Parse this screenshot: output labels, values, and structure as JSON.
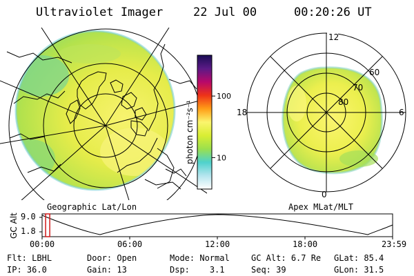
{
  "header": {
    "instrument": "Ultraviolet Imager",
    "date": "22 Jul 00",
    "time": "00:20:26 UT"
  },
  "left_panel": {
    "caption": "Geographic Lat/Lon"
  },
  "right_panel": {
    "caption": "Apex MLat/MLT",
    "mlt_labels": {
      "top": "12",
      "bottom": "0",
      "left": "18",
      "right": "6"
    },
    "lat_labels": [
      "60",
      "70",
      "80"
    ]
  },
  "colorbar": {
    "unit": "photon cm⁻²s⁻¹",
    "ticks": [
      {
        "label": "100",
        "frac": 0.695
      },
      {
        "label": "10",
        "frac": 0.235
      }
    ],
    "colors": [
      "#ffffff",
      "#b5e5ee",
      "#4ed2cc",
      "#9be04d",
      "#d9ee33",
      "#fbf56d",
      "#ff9d17",
      "#ee3318",
      "#b8086a",
      "#5b1a86",
      "#1a0d55"
    ]
  },
  "altitude_plot": {
    "ylabel": "GC Alt",
    "yticks": [
      "9.0",
      "1.8"
    ],
    "xticks": [
      "00:00",
      "06:00",
      "12:00",
      "18:00",
      "23:59"
    ],
    "current_time_frac": 0.014
  },
  "footer": {
    "row1": [
      {
        "key": "Flt:",
        "val": "LBHL"
      },
      {
        "key": "Door:",
        "val": "Open"
      },
      {
        "key": "Mode:",
        "val": "Normal"
      },
      {
        "key": "GC Alt:",
        "val": "6.7 Re"
      },
      {
        "key": "GLat:",
        "val": "85.4"
      }
    ],
    "row2": [
      {
        "key": "IP:",
        "val": "36.0"
      },
      {
        "key": "Gain:",
        "val": "13"
      },
      {
        "key": "Dsp:",
        "val": "3.1"
      },
      {
        "key": "Seq:",
        "val": "39"
      },
      {
        "key": "GLon:",
        "val": "31.5"
      }
    ]
  }
}
